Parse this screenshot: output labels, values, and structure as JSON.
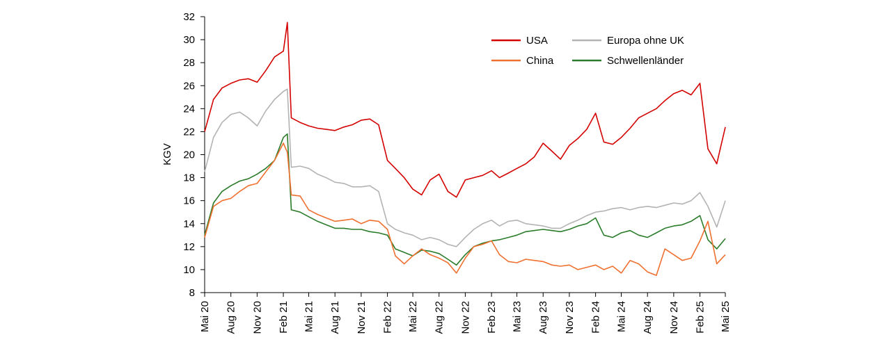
{
  "chart_data": {
    "type": "line",
    "title": "",
    "xlabel": "",
    "ylabel": "KGV",
    "ylim": [
      8,
      32
    ],
    "yticks": [
      8,
      10,
      12,
      14,
      16,
      18,
      20,
      22,
      24,
      26,
      28,
      30,
      32
    ],
    "xlim": [
      "2020-05-01",
      "2025-05-01"
    ],
    "xticks": [
      "Mai 20",
      "Aug 20",
      "Nov 20",
      "Feb 21",
      "Mai 21",
      "Aug 21",
      "Nov 21",
      "Feb 22",
      "Mai 22",
      "Aug 22",
      "Nov 22",
      "Feb 23",
      "Mai 23",
      "Aug 23",
      "Nov 23",
      "Feb 24",
      "Mai 24",
      "Aug 24",
      "Nov 24",
      "Feb 25",
      "Mai 25"
    ],
    "grid": false,
    "legend_position": "top-right",
    "x": [
      "2020-05-01",
      "2020-06-01",
      "2020-07-01",
      "2020-08-01",
      "2020-09-01",
      "2020-10-01",
      "2020-11-01",
      "2020-12-01",
      "2021-01-01",
      "2021-02-01",
      "2021-02-15",
      "2021-03-01",
      "2021-04-01",
      "2021-05-01",
      "2021-06-01",
      "2021-07-01",
      "2021-08-01",
      "2021-09-01",
      "2021-10-01",
      "2021-11-01",
      "2021-12-01",
      "2022-01-01",
      "2022-02-01",
      "2022-03-01",
      "2022-04-01",
      "2022-05-01",
      "2022-06-01",
      "2022-07-01",
      "2022-08-01",
      "2022-09-01",
      "2022-10-01",
      "2022-11-01",
      "2022-12-01",
      "2023-01-01",
      "2023-02-01",
      "2023-03-01",
      "2023-04-01",
      "2023-05-01",
      "2023-06-01",
      "2023-07-01",
      "2023-08-01",
      "2023-09-01",
      "2023-10-01",
      "2023-11-01",
      "2023-12-01",
      "2024-01-01",
      "2024-02-01",
      "2024-03-01",
      "2024-04-01",
      "2024-05-01",
      "2024-06-01",
      "2024-07-01",
      "2024-08-01",
      "2024-09-01",
      "2024-10-01",
      "2024-11-01",
      "2024-12-01",
      "2025-01-01",
      "2025-02-01",
      "2025-03-01",
      "2025-04-01",
      "2025-05-01"
    ],
    "series": [
      {
        "name": "USA",
        "color": "#d40000",
        "values": [
          22.0,
          24.8,
          25.8,
          26.2,
          26.5,
          26.6,
          26.3,
          27.3,
          28.5,
          29.0,
          31.5,
          23.2,
          22.8,
          22.5,
          22.3,
          22.2,
          22.1,
          22.4,
          22.6,
          23.0,
          23.1,
          22.6,
          19.5,
          18.8,
          18.0,
          17.0,
          16.5,
          17.8,
          18.3,
          16.8,
          16.3,
          17.8,
          18.0,
          18.2,
          18.6,
          18.0,
          18.4,
          18.8,
          19.2,
          19.8,
          21.0,
          20.3,
          19.6,
          20.8,
          21.4,
          22.2,
          23.6,
          21.1,
          20.9,
          21.5,
          22.3,
          23.2,
          23.6,
          24.0,
          24.7,
          25.3,
          25.6,
          25.2,
          26.2,
          20.5,
          19.2,
          22.4
        ]
      },
      {
        "name": "Europa ohne UK",
        "color": "#b3b3b3",
        "values": [
          18.5,
          21.5,
          22.8,
          23.5,
          23.7,
          23.2,
          22.5,
          23.8,
          24.8,
          25.5,
          25.7,
          18.9,
          19.0,
          18.8,
          18.3,
          18.0,
          17.6,
          17.5,
          17.2,
          17.2,
          17.3,
          16.8,
          14.0,
          13.5,
          13.2,
          13.0,
          12.6,
          12.8,
          12.6,
          12.2,
          12.0,
          12.8,
          13.5,
          14.0,
          14.3,
          13.8,
          14.2,
          14.3,
          14.0,
          13.9,
          13.8,
          13.6,
          13.6,
          14.0,
          14.3,
          14.7,
          15.0,
          15.1,
          15.3,
          15.4,
          15.2,
          15.4,
          15.5,
          15.4,
          15.6,
          15.8,
          15.7,
          16.0,
          16.7,
          15.5,
          13.7,
          16.0
        ]
      },
      {
        "name": "China",
        "color": "#f07030",
        "values": [
          12.8,
          15.5,
          16.0,
          16.2,
          16.8,
          17.3,
          17.5,
          18.5,
          19.5,
          21.0,
          20.2,
          16.5,
          16.4,
          15.2,
          14.8,
          14.5,
          14.2,
          14.3,
          14.4,
          14.0,
          14.3,
          14.2,
          13.5,
          11.2,
          10.5,
          11.2,
          11.8,
          11.3,
          11.0,
          10.6,
          9.7,
          11.0,
          12.0,
          12.2,
          12.5,
          11.3,
          10.7,
          10.6,
          10.9,
          10.8,
          10.7,
          10.4,
          10.3,
          10.4,
          10.0,
          10.2,
          10.4,
          10.0,
          10.3,
          9.7,
          10.8,
          10.5,
          9.8,
          9.5,
          11.8,
          11.3,
          10.8,
          11.0,
          12.5,
          14.2,
          10.5,
          11.3
        ]
      },
      {
        "name": "Schwellenländer",
        "color": "#2a7c2a",
        "values": [
          13.0,
          15.8,
          16.8,
          17.3,
          17.7,
          17.9,
          18.3,
          18.8,
          19.5,
          21.5,
          21.8,
          15.2,
          15.0,
          14.6,
          14.2,
          13.9,
          13.6,
          13.6,
          13.5,
          13.5,
          13.3,
          13.2,
          13.0,
          11.8,
          11.5,
          11.2,
          11.7,
          11.6,
          11.4,
          10.9,
          10.4,
          11.3,
          12.0,
          12.3,
          12.5,
          12.6,
          12.8,
          13.0,
          13.3,
          13.4,
          13.5,
          13.4,
          13.3,
          13.5,
          13.8,
          14.0,
          14.5,
          13.0,
          12.8,
          13.2,
          13.4,
          13.0,
          12.8,
          13.2,
          13.6,
          13.8,
          13.9,
          14.2,
          14.7,
          12.6,
          11.8,
          12.7
        ]
      }
    ]
  }
}
